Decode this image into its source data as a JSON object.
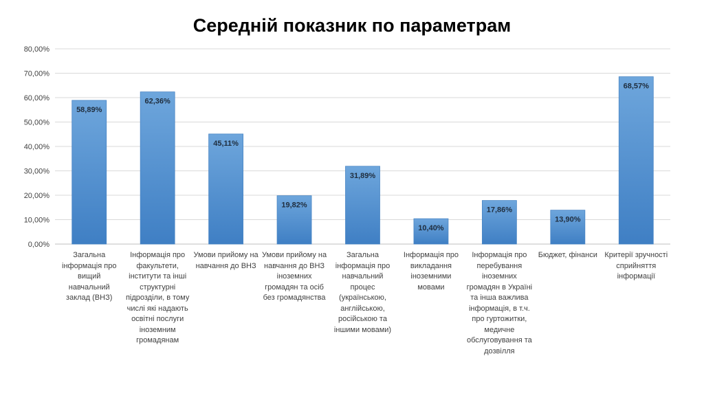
{
  "chart_data": {
    "type": "bar",
    "title": "Середній показник по параметрам",
    "xlabel": "",
    "ylabel": "",
    "ylim": [
      0,
      80
    ],
    "yticks": [
      "0,00%",
      "10,00%",
      "20,00%",
      "30,00%",
      "40,00%",
      "50,00%",
      "60,00%",
      "70,00%",
      "80,00%"
    ],
    "grid": true,
    "legend": "none",
    "bar_color": "#5b9bd5",
    "categories": [
      "Загальна інформація про вищий навчальний заклад (ВНЗ)",
      "Інформація про факультети, інститути та інші структурні підрозділи, в тому числі які надають освітні послуги іноземним громадянам",
      "Умови прийому на навчання до ВНЗ",
      "Умови прийому на навчання до ВНЗ іноземних громадян та осіб без громадянства",
      "Загальна інформація про навчальний процес (українською, англійською, російською та іншими мовами)",
      "Інформація про викладання іноземними мовами",
      "Інформація про перебування іноземних громадян в Україні та інша важлива інформація, в т.ч. про гуртожитки, медичне обслуговування та дозвілля",
      "Бюджет, фінанси",
      "Критерії зручності сприйняття інформації"
    ],
    "values": [
      58.89,
      62.36,
      45.11,
      19.82,
      31.89,
      10.4,
      17.86,
      13.9,
      68.57
    ],
    "data_labels": [
      "58,89%",
      "62,36%",
      "45,11%",
      "19,82%",
      "31,89%",
      "10,40%",
      "17,86%",
      "13,90%",
      "68,57%"
    ]
  }
}
